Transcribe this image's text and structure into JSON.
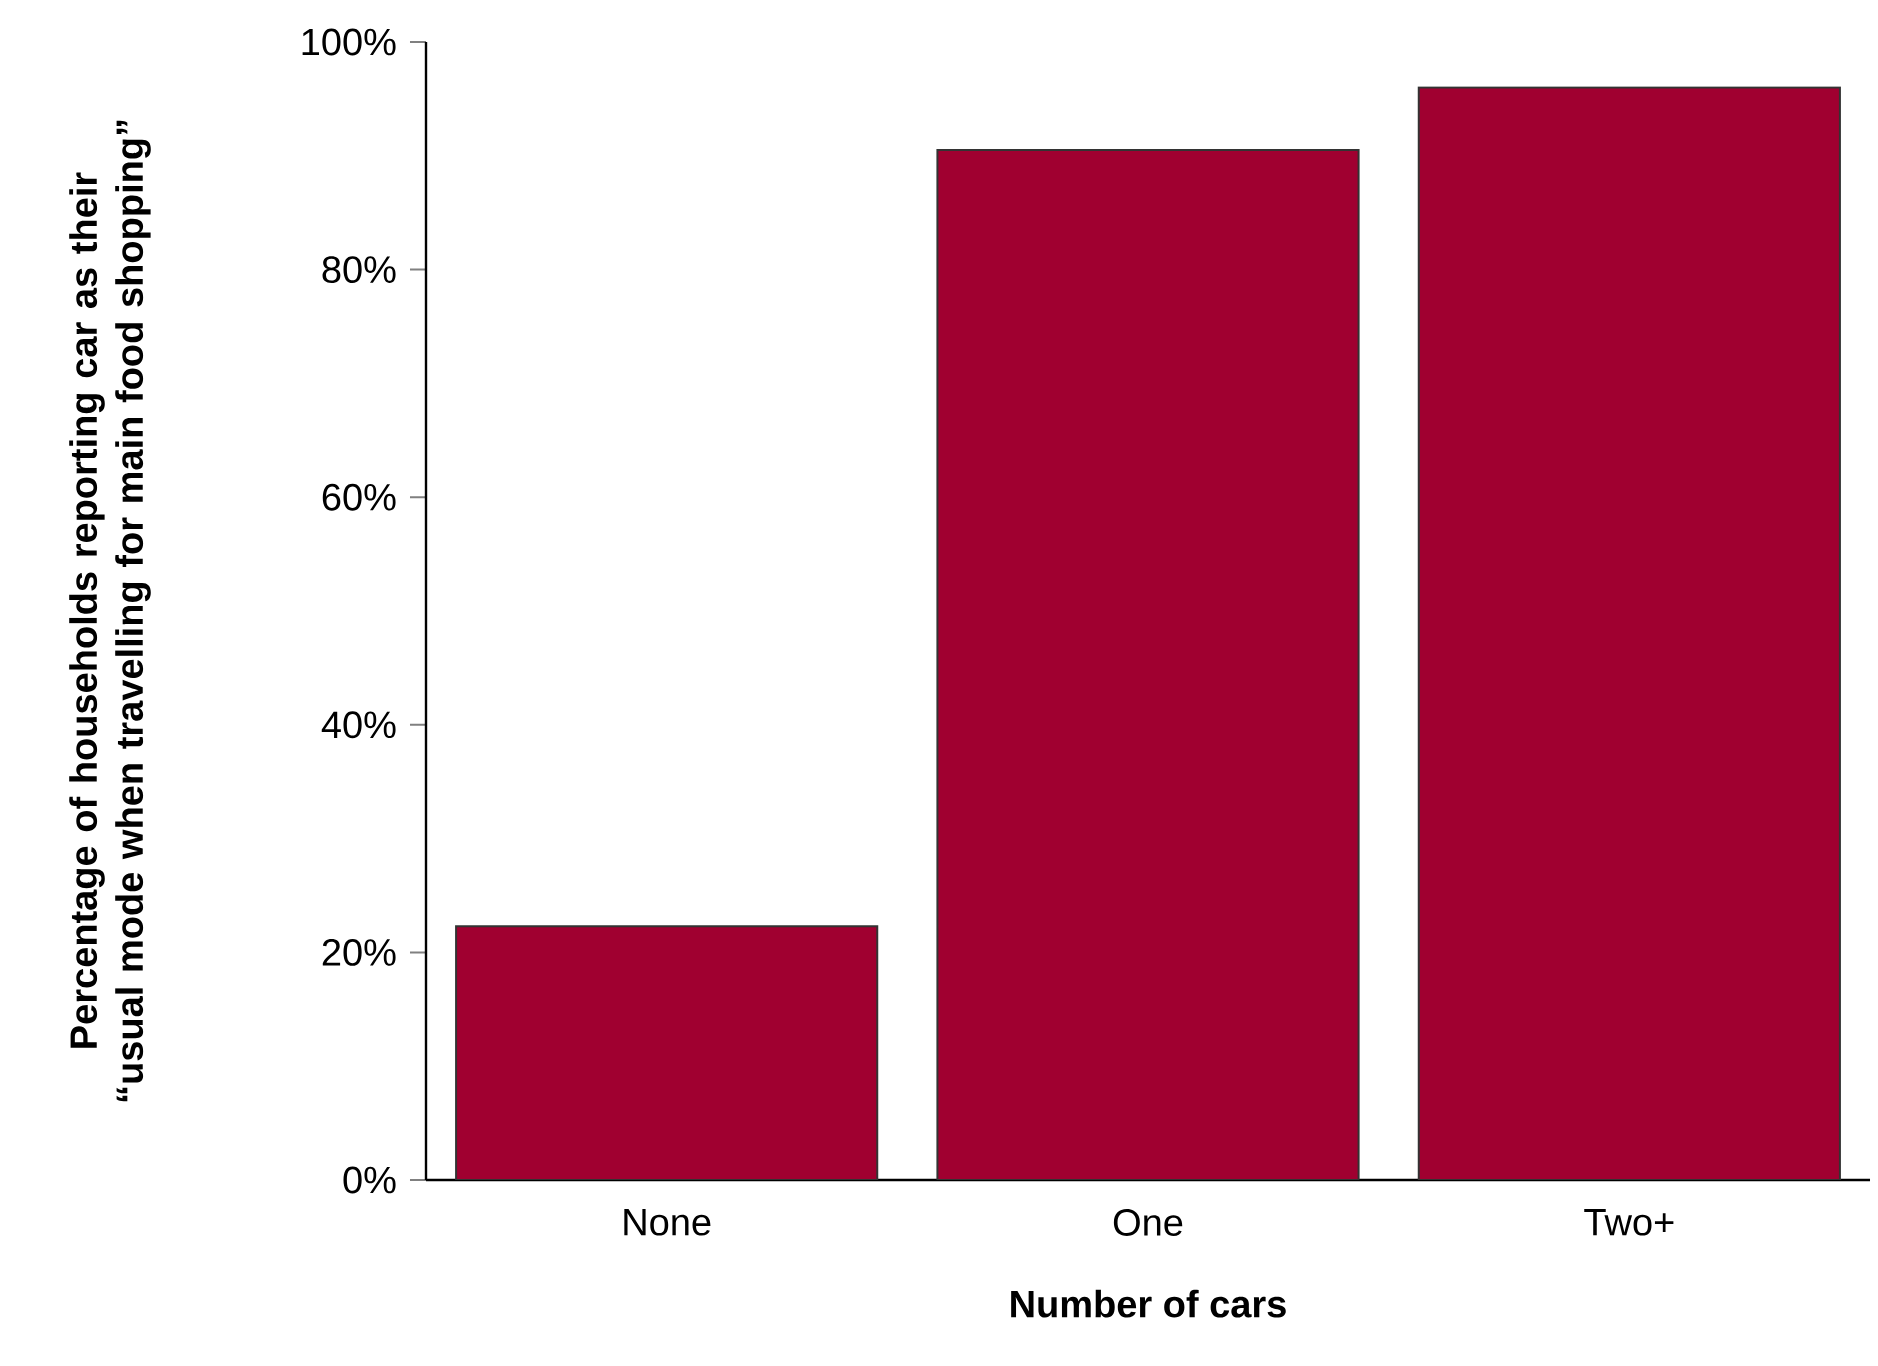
{
  "chart_data": {
    "type": "bar",
    "xlabel": "Number of cars",
    "ylabel": "Percentage of households reporting car as their “usual mode when travelling for main food shopping”",
    "categories": [
      "None",
      "One",
      "Two+"
    ],
    "values": [
      22.3,
      90.5,
      96
    ],
    "color": "#a00030",
    "ylim": [
      0,
      100
    ],
    "yticks": [
      {
        "value": 0,
        "label": "0%"
      },
      {
        "value": 20,
        "label": "20%"
      },
      {
        "value": 40,
        "label": "40%"
      },
      {
        "value": 60,
        "label": "60%"
      },
      {
        "value": 80,
        "label": "80%"
      },
      {
        "value": 100,
        "label": "100%"
      }
    ],
    "grid": false
  }
}
